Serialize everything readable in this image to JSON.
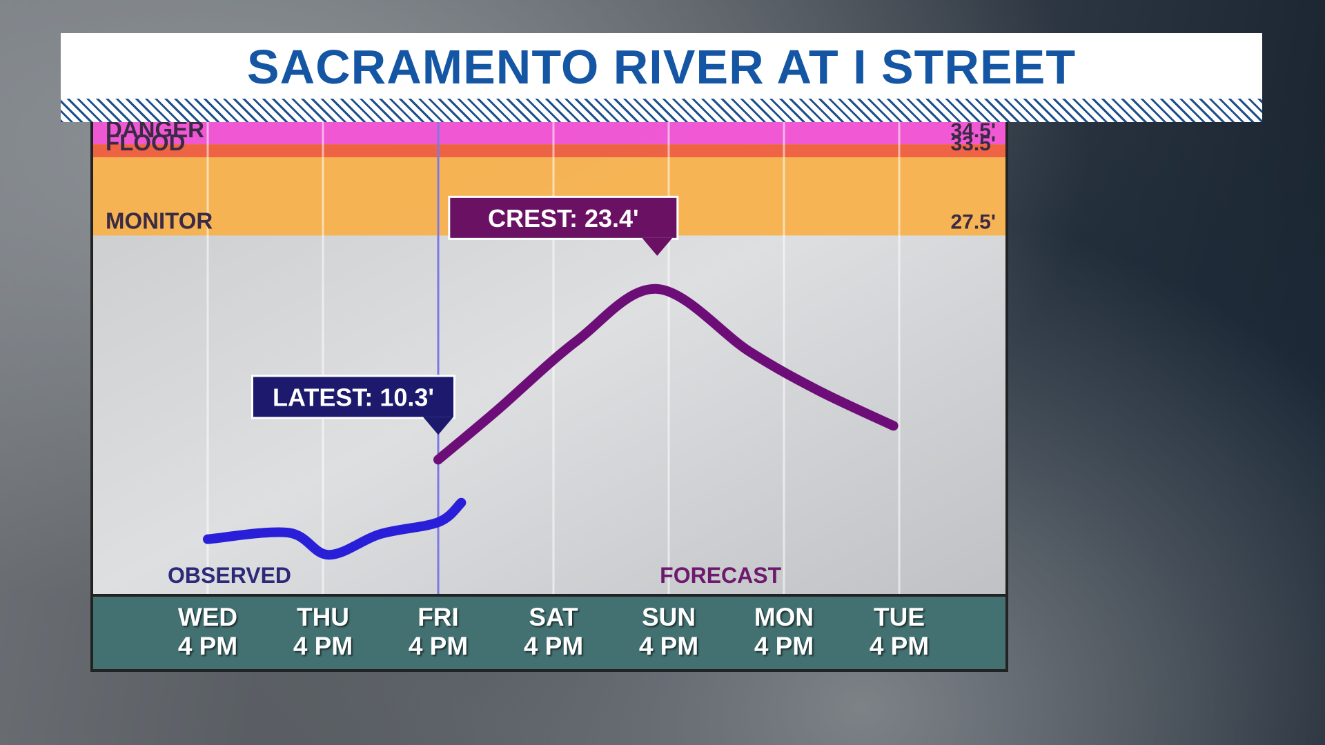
{
  "header": {
    "title": "SACRAMENTO RIVER AT I STREET"
  },
  "colors": {
    "title": "#1456a3",
    "danger_band": "#f14fd2",
    "flood_band": "#ef5a39",
    "monitor_band": "#f7b04a",
    "observed_line": "#2a1fd8",
    "forecast_line": "#6d0e78",
    "axis_bar": "#437171"
  },
  "chart_data": {
    "type": "line",
    "title": "SACRAMENTO RIVER AT I STREET",
    "categories": [
      "WED 4 PM",
      "THU 4 PM",
      "FRI 4 PM",
      "SAT 4 PM",
      "SUN 4 PM",
      "MON 4 PM",
      "TUE 4 PM"
    ],
    "x_ticks": [
      {
        "day": "WED",
        "time": "4 PM"
      },
      {
        "day": "THU",
        "time": "4 PM"
      },
      {
        "day": "FRI",
        "time": "4 PM"
      },
      {
        "day": "SAT",
        "time": "4 PM"
      },
      {
        "day": "SUN",
        "time": "4 PM"
      },
      {
        "day": "MON",
        "time": "4 PM"
      },
      {
        "day": "TUE",
        "time": "4 PM"
      }
    ],
    "thresholds": [
      {
        "name": "DANGER",
        "value": 34.5,
        "label": "34.5'",
        "color": "#f14fd2"
      },
      {
        "name": "FLOOD",
        "value": 33.5,
        "label": "33.5'",
        "color": "#ef5a39"
      },
      {
        "name": "MONITOR",
        "value": 27.5,
        "label": "27.5'",
        "color": "#f7b04a"
      }
    ],
    "series": [
      {
        "name": "OBSERVED",
        "color": "#2a1fd8",
        "points": [
          [
            0,
            4.2
          ],
          [
            0.7,
            4.7
          ],
          [
            1.05,
            3.0
          ],
          [
            1.5,
            4.6
          ],
          [
            2.0,
            5.5
          ],
          [
            2.2,
            7.0
          ]
        ]
      },
      {
        "name": "FORECAST",
        "color": "#6d0e78",
        "points": [
          [
            2.0,
            10.3
          ],
          [
            2.5,
            14.0
          ],
          [
            3.2,
            19.4
          ],
          [
            3.9,
            23.4
          ],
          [
            4.7,
            18.6
          ],
          [
            5.3,
            15.6
          ],
          [
            5.95,
            12.9
          ]
        ]
      }
    ],
    "annotations": [
      {
        "text": "LATEST: 10.3'",
        "x": 2.0,
        "value": 10.3
      },
      {
        "text": "CREST: 23.4'",
        "x": 3.9,
        "value": 23.4
      }
    ],
    "current_time_x": 2.0,
    "ylim": [
      0,
      36.2
    ]
  }
}
